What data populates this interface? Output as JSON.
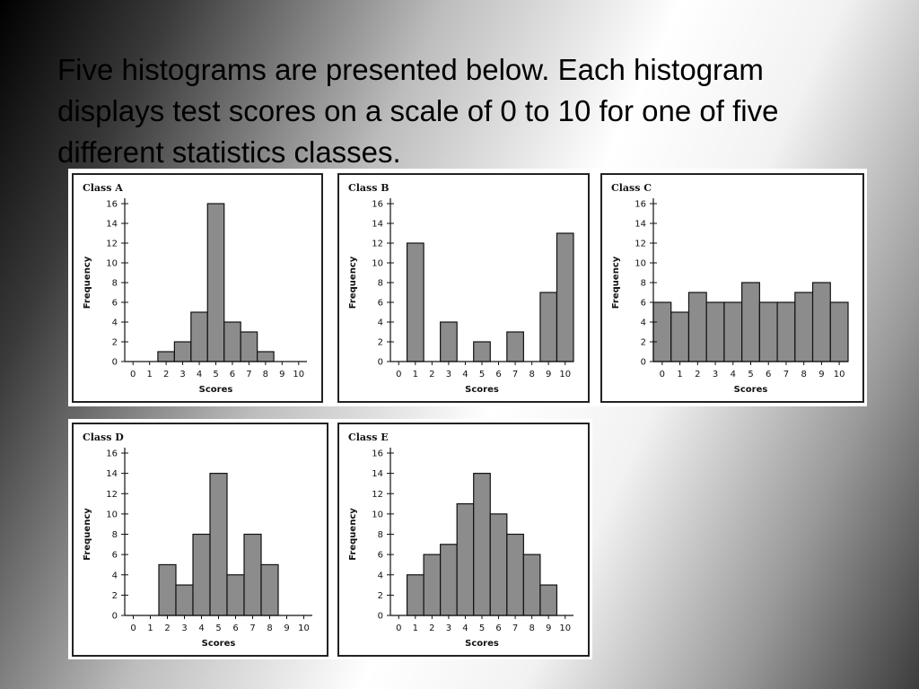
{
  "slide": {
    "title": "Five histograms are presented below. Each histogram displays test scores on a scale of 0 to 10 for one of five different statistics classes."
  },
  "colors": {
    "bar_fill": "#8c8c8c",
    "bar_stroke": "#111111",
    "panel_bg": "#ffffff"
  },
  "chart_data": [
    {
      "type": "bar",
      "title": "Class A",
      "xlabel": "Scores",
      "ylabel": "Frequency",
      "x": [
        0,
        1,
        2,
        3,
        4,
        5,
        6,
        7,
        8,
        9,
        10
      ],
      "values": [
        0,
        0,
        1,
        2,
        5,
        16,
        4,
        3,
        1,
        0,
        0
      ],
      "ylim": [
        0,
        16
      ],
      "yticks": [
        0,
        2,
        4,
        6,
        8,
        10,
        12,
        14,
        16
      ],
      "grid": false
    },
    {
      "type": "bar",
      "title": "Class B",
      "xlabel": "Scores",
      "ylabel": "Frequency",
      "x": [
        0,
        1,
        2,
        3,
        4,
        5,
        6,
        7,
        8,
        9,
        10
      ],
      "values": [
        0,
        12,
        0,
        4,
        0,
        2,
        0,
        3,
        0,
        7,
        13
      ],
      "ylim": [
        0,
        16
      ],
      "yticks": [
        0,
        2,
        4,
        6,
        8,
        10,
        12,
        14,
        16
      ],
      "grid": false
    },
    {
      "type": "bar",
      "title": "Class C",
      "xlabel": "Scores",
      "ylabel": "Frequency",
      "x": [
        0,
        1,
        2,
        3,
        4,
        5,
        6,
        7,
        8,
        9,
        10
      ],
      "values": [
        6,
        5,
        7,
        6,
        6,
        8,
        6,
        6,
        7,
        8,
        6
      ],
      "ylim": [
        0,
        16
      ],
      "yticks": [
        0,
        2,
        4,
        6,
        8,
        10,
        12,
        14,
        16
      ],
      "grid": false
    },
    {
      "type": "bar",
      "title": "Class D",
      "xlabel": "Scores",
      "ylabel": "Frequency",
      "x": [
        0,
        1,
        2,
        3,
        4,
        5,
        6,
        7,
        8,
        9,
        10
      ],
      "values": [
        0,
        0,
        5,
        3,
        8,
        14,
        4,
        8,
        5,
        0,
        0
      ],
      "ylim": [
        0,
        16
      ],
      "yticks": [
        0,
        2,
        4,
        6,
        8,
        10,
        12,
        14,
        16
      ],
      "grid": false
    },
    {
      "type": "bar",
      "title": "Class E",
      "xlabel": "Scores",
      "ylabel": "Frequency",
      "x": [
        0,
        1,
        2,
        3,
        4,
        5,
        6,
        7,
        8,
        9,
        10
      ],
      "values": [
        0,
        4,
        6,
        7,
        11,
        14,
        10,
        8,
        6,
        3,
        0
      ],
      "ylim": [
        0,
        16
      ],
      "yticks": [
        0,
        2,
        4,
        6,
        8,
        10,
        12,
        14,
        16
      ],
      "grid": false
    }
  ]
}
